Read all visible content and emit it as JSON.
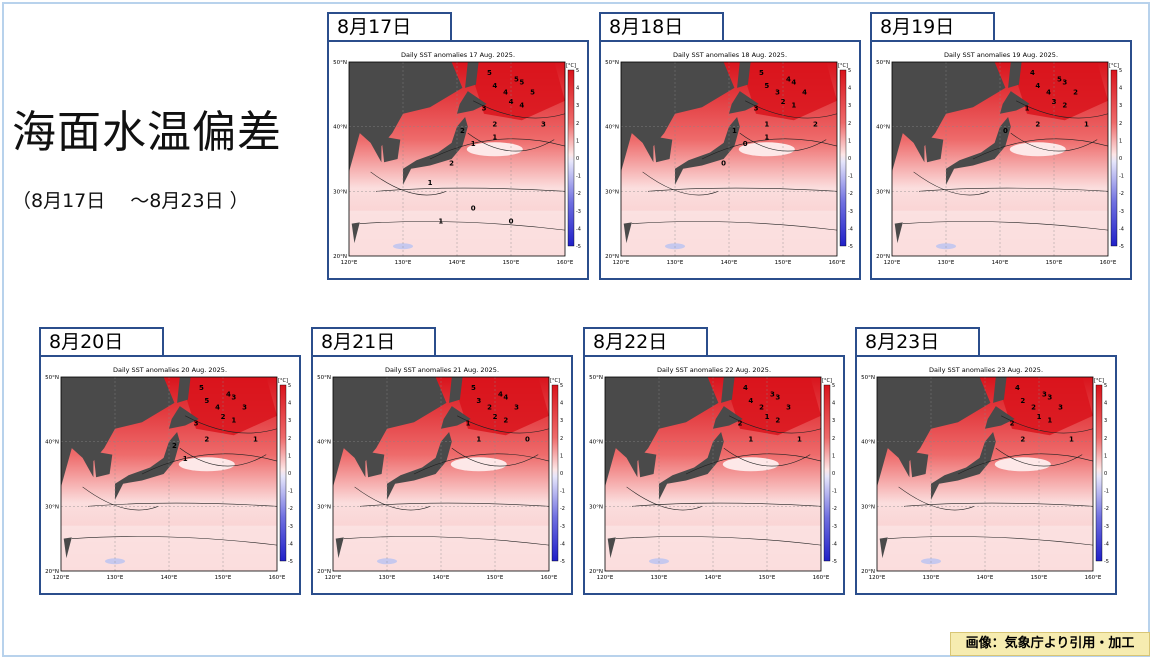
{
  "title": "海面水温偏差",
  "subtitle": "（8月17日 　～8月23日 ）",
  "credit": "画像：気象庁より引用・加工",
  "colors": {
    "panel_border": "#2b4e8c",
    "land": "#4a4a4a",
    "warm_strong": "#d9141c",
    "warm_mid": "#ee6b6b",
    "warm_light": "#f8c3c3",
    "neutral": "#ffffff",
    "cool_light": "#c6c8ee",
    "cool_strong": "#2020c8"
  },
  "map_common": {
    "lat_labels": [
      "50°N",
      "40°N",
      "30°N",
      "20°N"
    ],
    "lon_labels": [
      "120°E",
      "130°E",
      "140°E",
      "150°E",
      "160°E"
    ],
    "colorbar_unit": "[°C]",
    "colorbar_ticks": [
      "5",
      "4",
      "3",
      "2",
      "1",
      "0",
      "-1",
      "-2",
      "-3",
      "-4",
      "-5"
    ]
  },
  "panels": [
    {
      "tab": "8月17日",
      "title": "Daily SST anomalies 17 Aug. 2025.",
      "contour_labels": [
        "5",
        "5",
        "4",
        "5",
        "4",
        "5",
        "4",
        "3",
        "4",
        "2",
        "3",
        "2",
        "1",
        "1",
        "2",
        "1",
        "0",
        "1",
        "0"
      ]
    },
    {
      "tab": "8月18日",
      "title": "Daily SST anomalies 18 Aug. 2025.",
      "contour_labels": [
        "5",
        "4",
        "5",
        "4",
        "3",
        "4",
        "2",
        "3",
        "1",
        "1",
        "2",
        "1",
        "0",
        "1",
        "0"
      ]
    },
    {
      "tab": "8月19日",
      "title": "Daily SST anomalies 19 Aug. 2025.",
      "contour_labels": [
        "4",
        "5",
        "4",
        "3",
        "4",
        "2",
        "3",
        "1",
        "2",
        "2",
        "1",
        "0"
      ]
    },
    {
      "tab": "8月20日",
      "title": "Daily SST anomalies 20 Aug. 2025.",
      "contour_labels": [
        "5",
        "4",
        "5",
        "3",
        "4",
        "3",
        "2",
        "3",
        "1",
        "2",
        "1",
        "2",
        "1"
      ]
    },
    {
      "tab": "8月21日",
      "title": "Daily SST anomalies 21 Aug. 2025.",
      "contour_labels": [
        "5",
        "4",
        "3",
        "4",
        "2",
        "3",
        "2",
        "1",
        "2",
        "1",
        "0"
      ]
    },
    {
      "tab": "8月22日",
      "title": "Daily SST anomalies 22 Aug. 2025.",
      "contour_labels": [
        "4",
        "3",
        "4",
        "3",
        "2",
        "3",
        "1",
        "2",
        "2",
        "1",
        "1"
      ]
    },
    {
      "tab": "8月23日",
      "title": "Daily SST anomalies 23 Aug. 2025.",
      "contour_labels": [
        "4",
        "3",
        "2",
        "3",
        "2",
        "3",
        "1",
        "2",
        "1",
        "2",
        "1"
      ]
    }
  ]
}
